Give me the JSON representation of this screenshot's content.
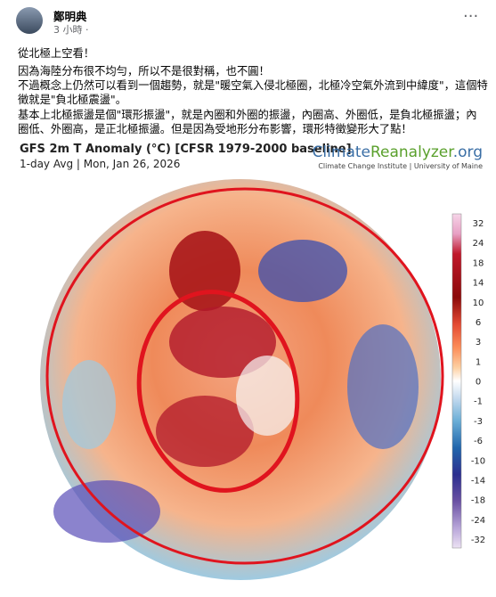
{
  "post": {
    "author": "鄭明典",
    "time": "3 小時 ·",
    "lines": [
      "從北極上空看！",
      "因為海陸分布很不均勻，所以不是很對稱，也不圓！",
      "不過概念上仍然可以看到一個趨勢，就是\"暖空氣入侵北極圈，北極冷空氣外流到中緯度\"，這個特",
      "徵就是\"負北極震盪\"。",
      "基本上北極振盪是個\"環形振盪\"，就是內圈和外圈的振盪，內圈高、外圈低，是負北極振盪；內",
      "圈低、外圈高，是正北極振盪。但是因為受地形分布影響，環形特徵變形大了點！"
    ]
  },
  "image": {
    "title": "GFS 2m T Anomaly (°C) [CFSR 1979-2000 baseline]",
    "subtitle": "1-day Avg | Mon, Jan 26, 2026",
    "brand_a": "Climate",
    "brand_b": "Reanalyzer",
    "brand_c": ".org",
    "institute": "Climate Change Institute | University of Maine",
    "colorbar": [
      "32",
      "24",
      "18",
      "14",
      "10",
      "6",
      "3",
      "1",
      "0",
      "-1",
      "-3",
      "-6",
      "-10",
      "-14",
      "-18",
      "-24",
      "-32"
    ]
  }
}
